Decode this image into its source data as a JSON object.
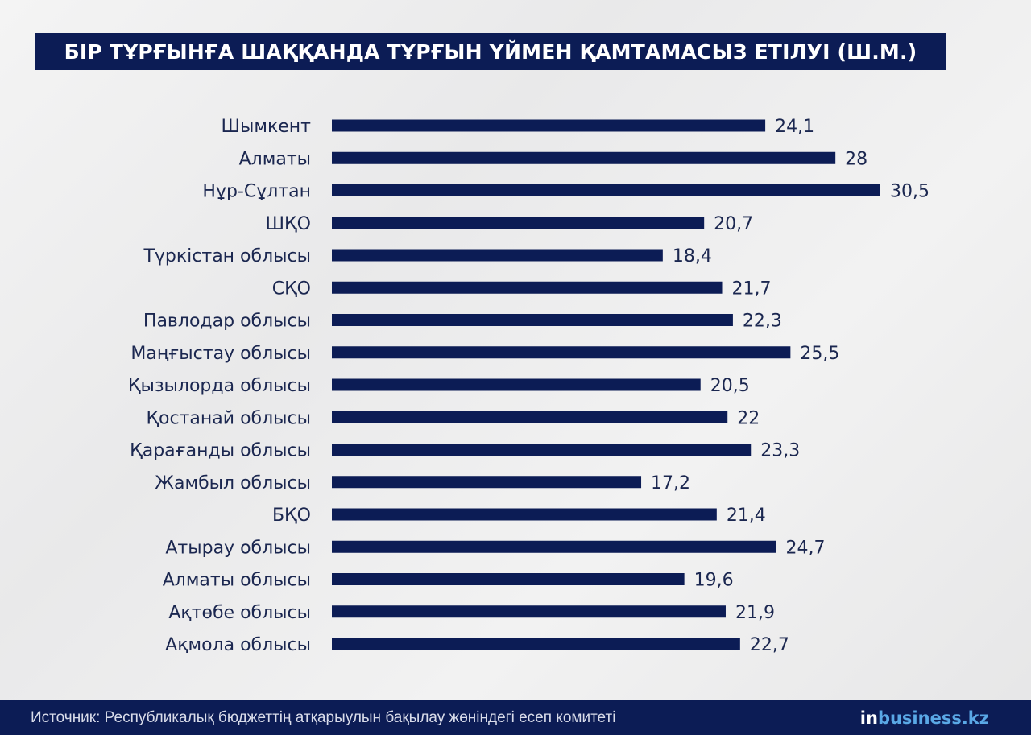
{
  "header": {
    "title": "БІР ТҰРҒЫНҒА ШАҚҚАНДА ТҰРҒЫН ҮЙМЕН ҚАМТАМАСЫЗ ЕТІЛУІ (Ш.М.)"
  },
  "footer": {
    "source": "Источник: Республикалық бюджеттің атқарыулын бақылау жөніндегі есеп комитеті",
    "brand_in": "in",
    "brand_rest": "business.kz"
  },
  "colors": {
    "bar": "#0c1c55",
    "text": "#1b2750",
    "brand_accent": "#5aa8e6"
  },
  "chart_data": {
    "type": "bar",
    "orientation": "horizontal",
    "title": "БІР ТҰРҒЫНҒА ШАҚҚАНДА ТҰРҒЫН ҮЙМЕН ҚАМТАМАСЫЗ ЕТІЛУІ (Ш.М.)",
    "xlabel": "",
    "ylabel": "",
    "xlim": [
      0,
      30.5
    ],
    "grid": false,
    "legend": "none",
    "categories": [
      "Шымкент",
      "Алматы",
      "Нұр-Сұлтан",
      "ШҚО",
      "Түркістан облысы",
      "СҚО",
      "Павлодар облысы",
      "Маңғыстау облысы",
      "Қызылорда облысы",
      "Қостанай облысы",
      "Қарағанды облысы",
      "Жамбыл облысы",
      "БҚО",
      "Атырау облысы",
      "Алматы облысы",
      "Ақтөбе облысы",
      "Ақмола облысы"
    ],
    "values": [
      24.1,
      28,
      30.5,
      20.7,
      18.4,
      21.7,
      22.3,
      25.5,
      20.5,
      22,
      23.3,
      17.2,
      21.4,
      24.7,
      19.6,
      21.9,
      22.7
    ],
    "value_labels": [
      "24,1",
      "28",
      "30,5",
      "20,7",
      "18,4",
      "21,7",
      "22,3",
      "25,5",
      "20,5",
      "22",
      "23,3",
      "17,2",
      "21,4",
      "24,7",
      "19,6",
      "21,9",
      "22,7"
    ]
  }
}
